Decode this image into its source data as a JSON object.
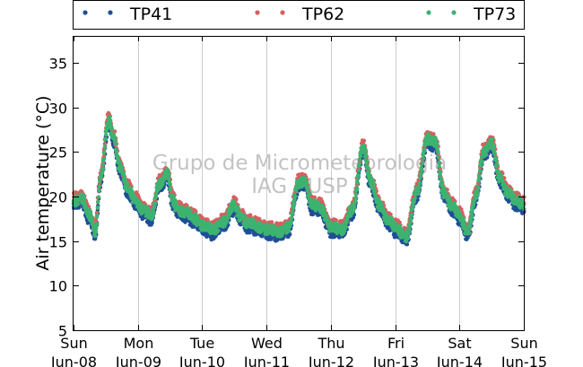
{
  "chart_data": {
    "type": "scatter",
    "title": "",
    "xlabel": "",
    "ylabel": "Air temperature (°C)",
    "ylim": [
      5,
      38
    ],
    "xlim": [
      "2015-06-08",
      "2015-06-15"
    ],
    "grid": "vertical-only",
    "legend_position": "top (above plot)",
    "yticks": [
      "5",
      "10",
      "15",
      "20",
      "25",
      "30",
      "35"
    ],
    "xticks": [
      {
        "day": "Sun",
        "date": "Jun-08"
      },
      {
        "day": "Mon",
        "date": "Jun-09"
      },
      {
        "day": "Tue",
        "date": "Jun-10"
      },
      {
        "day": "Wed",
        "date": "Jun-11"
      },
      {
        "day": "Thu",
        "date": "Jun-12"
      },
      {
        "day": "Fri",
        "date": "Jun-13"
      },
      {
        "day": "Sat",
        "date": "Jun-14"
      },
      {
        "day": "Sun",
        "date": "Jun-15"
      }
    ],
    "watermark": [
      "Grupo de Micrometeorologia",
      "IAG / USP"
    ],
    "series": [
      {
        "name": "TP41",
        "color": "#1f4e96",
        "offset": -0.5
      },
      {
        "name": "TP62",
        "color": "#d65f5f",
        "offset": 0.4
      },
      {
        "name": "TP73",
        "color": "#3cb371",
        "offset": 0.0
      }
    ],
    "profile": {
      "x": [
        "2015-06-08 00:00",
        "2015-06-08 03:00",
        "2015-06-08 06:00",
        "2015-06-08 08:00",
        "2015-06-08 10:00",
        "2015-06-08 13:00",
        "2015-06-08 15:00",
        "2015-06-08 17:00",
        "2015-06-08 20:00",
        "2015-06-08 23:00",
        "2015-06-09 02:00",
        "2015-06-09 05:00",
        "2015-06-09 08:00",
        "2015-06-09 11:00",
        "2015-06-09 13:00",
        "2015-06-09 15:00",
        "2015-06-09 18:00",
        "2015-06-09 21:00",
        "2015-06-10 00:00",
        "2015-06-10 04:00",
        "2015-06-10 08:00",
        "2015-06-10 12:00",
        "2015-06-10 14:00",
        "2015-06-10 17:00",
        "2015-06-10 21:00",
        "2015-06-11 00:00",
        "2015-06-11 04:00",
        "2015-06-11 08:00",
        "2015-06-11 12:00",
        "2015-06-11 14:00",
        "2015-06-11 17:00",
        "2015-06-11 20:00",
        "2015-06-12 00:00",
        "2015-06-12 04:00",
        "2015-06-12 08:00",
        "2015-06-12 12:00",
        "2015-06-12 15:00",
        "2015-06-12 18:00",
        "2015-06-12 21:00",
        "2015-06-13 00:00",
        "2015-06-13 04:00",
        "2015-06-13 08:00",
        "2015-06-13 12:00",
        "2015-06-13 15:00",
        "2015-06-13 18:00",
        "2015-06-13 21:00",
        "2015-06-14 00:00",
        "2015-06-14 03:00",
        "2015-06-14 06:00",
        "2015-06-14 09:00",
        "2015-06-14 12:00",
        "2015-06-14 15:00",
        "2015-06-14 18:00",
        "2015-06-14 21:00",
        "2015-06-15 00:00"
      ],
      "y": [
        19.5,
        19.8,
        17.8,
        16.0,
        22.0,
        28.5,
        26.5,
        23.5,
        21.0,
        19.5,
        18.5,
        17.8,
        21.5,
        22.5,
        19.5,
        18.5,
        18.2,
        17.5,
        16.8,
        16.2,
        17.2,
        19.0,
        17.8,
        17.0,
        16.6,
        16.3,
        16.0,
        16.5,
        21.5,
        21.8,
        19.0,
        18.8,
        16.5,
        16.3,
        18.5,
        25.5,
        21.5,
        19.0,
        17.5,
        16.5,
        15.5,
        20.5,
        26.5,
        26.0,
        20.5,
        19.0,
        17.8,
        16.0,
        20.0,
        25.0,
        26.0,
        22.0,
        20.5,
        19.5,
        19.0
      ]
    }
  }
}
